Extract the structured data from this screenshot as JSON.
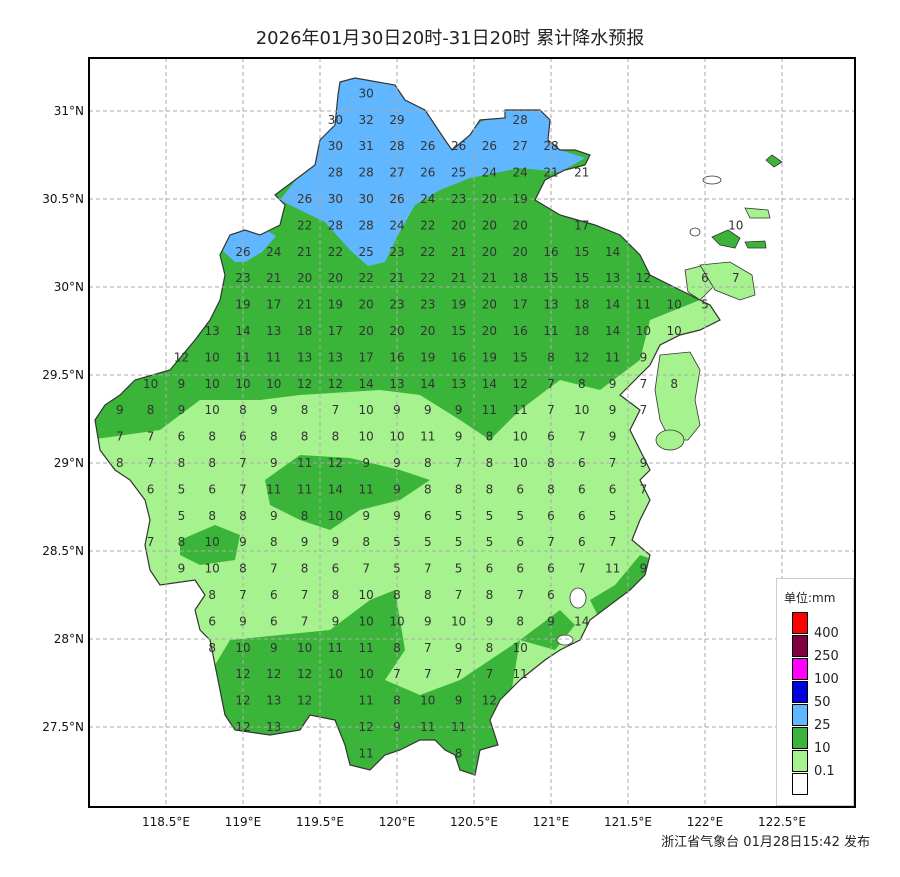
{
  "title": "2026年01月30日20时-31日20时 累计降水预报",
  "footer": "浙江省气象台 01月28日15:42 发布",
  "axes": {
    "lat_ticks": [
      "31°N",
      "30.5°N",
      "30°N",
      "29.5°N",
      "29°N",
      "28.5°N",
      "28°N",
      "27.5°N"
    ],
    "lat_values": [
      31,
      30.5,
      30,
      29.5,
      29,
      28.5,
      28,
      27.5
    ],
    "lon_ticks": [
      "118.5°E",
      "119°E",
      "119.5°E",
      "120°E",
      "120.5°E",
      "121°E",
      "121.5°E",
      "122°E",
      "122.5°E"
    ],
    "lon_values": [
      118.5,
      119,
      119.5,
      120,
      120.5,
      121,
      121.5,
      122,
      122.5
    ],
    "grid": true
  },
  "legend": {
    "title": "单位:mm",
    "levels": [
      {
        "label": "400",
        "color": "#ff0000"
      },
      {
        "label": "250",
        "color": "#7f0040"
      },
      {
        "label": "100",
        "color": "#ff00ff"
      },
      {
        "label": "50",
        "color": "#0000e0"
      },
      {
        "label": "25",
        "color": "#61b7ff"
      },
      {
        "label": "10",
        "color": "#3ab53a"
      },
      {
        "label": "0.1",
        "color": "#a6f28e"
      },
      {
        "label": "",
        "color": "#ffffff"
      }
    ]
  },
  "grid_values": {
    "lon_step": 0.2,
    "rows": [
      {
        "lat": 31.1,
        "lon_start": 119.8,
        "values": [
          30
        ]
      },
      {
        "lat": 30.95,
        "lon_start": 119.6,
        "values": [
          30,
          32,
          29,
          null,
          null,
          null,
          28
        ]
      },
      {
        "lat": 30.8,
        "lon_start": 119.6,
        "values": [
          30,
          31,
          28,
          26,
          26,
          26,
          27,
          28
        ]
      },
      {
        "lat": 30.65,
        "lon_start": 119.6,
        "values": [
          28,
          28,
          27,
          26,
          25,
          24,
          24,
          21,
          21
        ]
      },
      {
        "lat": 30.5,
        "lon_start": 119.4,
        "values": [
          26,
          30,
          30,
          26,
          24,
          23,
          20,
          19
        ]
      },
      {
        "lat": 30.35,
        "lon_start": 119.4,
        "values": [
          22,
          28,
          28,
          24,
          22,
          20,
          20,
          20,
          null,
          17,
          null,
          null,
          null,
          null,
          10
        ]
      },
      {
        "lat": 30.2,
        "lon_start": 119.0,
        "values": [
          26,
          24,
          21,
          22,
          25,
          23,
          22,
          21,
          20,
          20,
          16,
          15,
          14
        ]
      },
      {
        "lat": 30.05,
        "lon_start": 119.0,
        "values": [
          23,
          21,
          20,
          20,
          22,
          21,
          22,
          21,
          21,
          18,
          15,
          15,
          13,
          12,
          null,
          6,
          7
        ]
      },
      {
        "lat": 29.9,
        "lon_start": 119.0,
        "values": [
          19,
          17,
          21,
          19,
          20,
          23,
          23,
          19,
          20,
          17,
          13,
          18,
          14,
          11,
          10,
          5
        ]
      },
      {
        "lat": 29.75,
        "lon_start": 118.8,
        "values": [
          13,
          14,
          13,
          18,
          17,
          20,
          20,
          20,
          15,
          20,
          16,
          11,
          18,
          14,
          10,
          10
        ]
      },
      {
        "lat": 29.6,
        "lon_start": 118.6,
        "values": [
          12,
          10,
          11,
          11,
          13,
          13,
          17,
          16,
          19,
          16,
          19,
          15,
          8,
          12,
          11,
          9
        ]
      },
      {
        "lat": 29.45,
        "lon_start": 118.4,
        "values": [
          10,
          9,
          10,
          10,
          10,
          12,
          12,
          14,
          13,
          14,
          13,
          14,
          12,
          7,
          8,
          9,
          7,
          8
        ]
      },
      {
        "lat": 29.3,
        "lon_start": 118.2,
        "values": [
          9,
          8,
          9,
          10,
          8,
          9,
          8,
          7,
          10,
          9,
          9,
          9,
          11,
          11,
          7,
          10,
          9,
          7
        ]
      },
      {
        "lat": 29.15,
        "lon_start": 118.2,
        "values": [
          7,
          7,
          6,
          8,
          6,
          8,
          8,
          8,
          10,
          10,
          11,
          9,
          8,
          10,
          6,
          7,
          9
        ]
      },
      {
        "lat": 29.0,
        "lon_start": 118.2,
        "values": [
          8,
          7,
          8,
          8,
          7,
          9,
          11,
          12,
          9,
          9,
          8,
          7,
          8,
          10,
          8,
          6,
          7,
          9
        ]
      },
      {
        "lat": 28.85,
        "lon_start": 118.4,
        "values": [
          6,
          5,
          6,
          7,
          11,
          11,
          14,
          11,
          9,
          8,
          8,
          8,
          6,
          8,
          6,
          6,
          7
        ]
      },
      {
        "lat": 28.7,
        "lon_start": 118.6,
        "values": [
          5,
          8,
          8,
          9,
          8,
          10,
          9,
          9,
          6,
          5,
          5,
          5,
          6,
          6,
          5
        ]
      },
      {
        "lat": 28.55,
        "lon_start": 118.4,
        "values": [
          7,
          8,
          10,
          9,
          8,
          9,
          9,
          8,
          5,
          5,
          5,
          5,
          6,
          7,
          6,
          7
        ]
      },
      {
        "lat": 28.4,
        "lon_start": 118.6,
        "values": [
          9,
          10,
          8,
          7,
          8,
          6,
          7,
          5,
          7,
          5,
          6,
          6,
          6,
          7,
          11,
          9
        ]
      },
      {
        "lat": 28.25,
        "lon_start": 118.8,
        "values": [
          8,
          7,
          6,
          7,
          8,
          10,
          8,
          8,
          7,
          8,
          7,
          6
        ]
      },
      {
        "lat": 28.1,
        "lon_start": 118.8,
        "values": [
          6,
          9,
          6,
          7,
          9,
          10,
          10,
          9,
          10,
          9,
          8,
          9,
          14
        ]
      },
      {
        "lat": 27.95,
        "lon_start": 118.8,
        "values": [
          8,
          10,
          9,
          10,
          11,
          11,
          8,
          7,
          9,
          8,
          10
        ]
      },
      {
        "lat": 27.8,
        "lon_start": 119.0,
        "values": [
          12,
          12,
          12,
          10,
          10,
          7,
          7,
          7,
          7,
          11
        ]
      },
      {
        "lat": 27.65,
        "lon_start": 119.0,
        "values": [
          12,
          13,
          12,
          null,
          11,
          8,
          10,
          9,
          12
        ]
      },
      {
        "lat": 27.5,
        "lon_start": 119.0,
        "values": [
          12,
          13,
          null,
          null,
          12,
          9,
          11,
          11
        ]
      },
      {
        "lat": 27.35,
        "lon_start": 119.8,
        "values": [
          11,
          null,
          null,
          8
        ]
      }
    ]
  }
}
